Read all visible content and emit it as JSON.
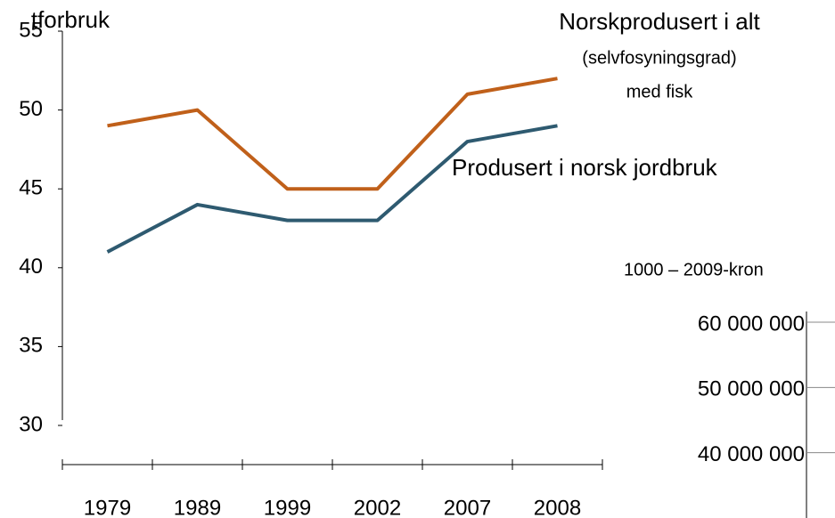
{
  "chart_data": [
    {
      "type": "line",
      "title": "tforbruk",
      "categories": [
        "1979",
        "1989",
        "1999",
        "2002",
        "2007",
        "2008"
      ],
      "series": [
        {
          "name": "Norskprodusert i alt",
          "color": "#c0601a",
          "values": [
            49,
            50,
            45,
            45,
            51,
            52
          ]
        },
        {
          "name": "Produsert i norsk jordbruk",
          "color": "#2e5a70",
          "values": [
            41,
            44,
            43,
            43,
            48,
            49
          ]
        }
      ],
      "annotations": [
        "(selvfosyningsgrad)",
        "med fisk"
      ],
      "ylim": [
        30,
        55
      ],
      "yticks": [
        30,
        35,
        40,
        45,
        50,
        55
      ]
    },
    {
      "type": "area",
      "ylabel": "1000 – 2009-kron",
      "ylim": [
        33000000,
        63000000
      ],
      "yticks": [
        {
          "value": 40000000,
          "label": "40 000 000"
        },
        {
          "value": 50000000,
          "label": "50 000 000"
        },
        {
          "value": 60000000,
          "label": "60 000 000"
        }
      ]
    }
  ]
}
